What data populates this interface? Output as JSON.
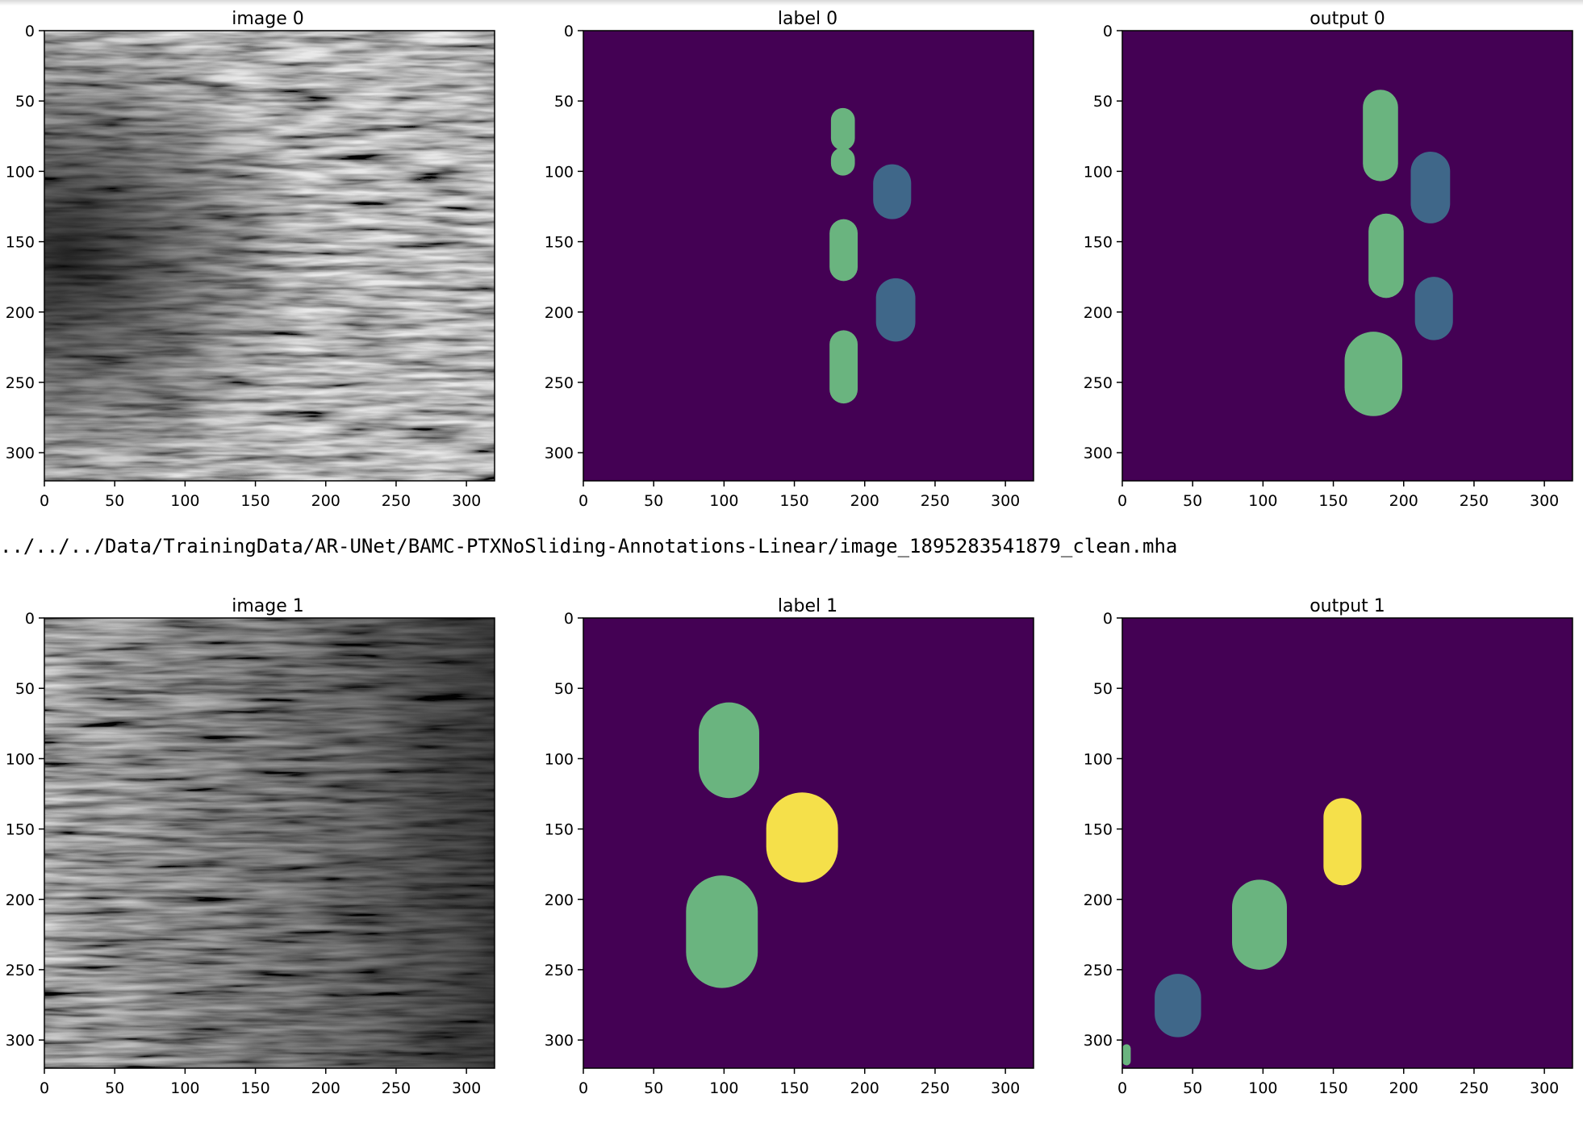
{
  "colors": {
    "background": "#440154",
    "green_class": "#6ab47f",
    "blue_class": "#3f6789",
    "yellow_class": "#f5e04a",
    "axis": "#000000"
  },
  "output_path": "../../../Data/TrainingData/AR-UNet/BAMC-PTXNoSliding-Annotations-Linear/image_1895283541879_clean.mha",
  "chart_data": [
    {
      "type": "heatmap",
      "title": "image 0",
      "xlim": [
        0,
        320
      ],
      "ylim": [
        320,
        0
      ],
      "x_ticks": [
        0,
        50,
        100,
        150,
        200,
        250,
        300
      ],
      "y_ticks": [
        0,
        50,
        100,
        150,
        200,
        250,
        300
      ],
      "content": "grayscale ultrasound image"
    },
    {
      "type": "heatmap",
      "title": "label 0",
      "xlim": [
        0,
        320
      ],
      "ylim": [
        320,
        0
      ],
      "x_ticks": [
        0,
        50,
        100,
        150,
        200,
        250,
        300
      ],
      "y_ticks": [
        0,
        50,
        100,
        150,
        200,
        250,
        300
      ],
      "regions": [
        {
          "class": "green",
          "x": [
            176,
            193
          ],
          "y": [
            55,
            85
          ]
        },
        {
          "class": "green",
          "x": [
            176,
            193
          ],
          "y": [
            83,
            103
          ]
        },
        {
          "class": "green",
          "x": [
            175,
            195
          ],
          "y": [
            134,
            178
          ]
        },
        {
          "class": "green",
          "x": [
            175,
            195
          ],
          "y": [
            213,
            265
          ]
        },
        {
          "class": "blue",
          "x": [
            206,
            233
          ],
          "y": [
            95,
            134
          ]
        },
        {
          "class": "blue",
          "x": [
            208,
            236
          ],
          "y": [
            176,
            221
          ]
        }
      ]
    },
    {
      "type": "heatmap",
      "title": "output 0",
      "xlim": [
        0,
        320
      ],
      "ylim": [
        320,
        0
      ],
      "x_ticks": [
        0,
        50,
        100,
        150,
        200,
        250,
        300
      ],
      "y_ticks": [
        0,
        50,
        100,
        150,
        200,
        250,
        300
      ],
      "regions": [
        {
          "class": "green",
          "x": [
            171,
            196
          ],
          "y": [
            42,
            107
          ]
        },
        {
          "class": "green",
          "x": [
            175,
            200
          ],
          "y": [
            130,
            190
          ]
        },
        {
          "class": "green",
          "x": [
            158,
            199
          ],
          "y": [
            214,
            274
          ]
        },
        {
          "class": "blue",
          "x": [
            205,
            233
          ],
          "y": [
            86,
            137
          ]
        },
        {
          "class": "blue",
          "x": [
            208,
            235
          ],
          "y": [
            175,
            220
          ]
        }
      ]
    },
    {
      "type": "heatmap",
      "title": "image 1",
      "xlim": [
        0,
        320
      ],
      "ylim": [
        320,
        0
      ],
      "x_ticks": [
        0,
        50,
        100,
        150,
        200,
        250,
        300
      ],
      "y_ticks": [
        0,
        50,
        100,
        150,
        200,
        250,
        300
      ],
      "content": "grayscale ultrasound image"
    },
    {
      "type": "heatmap",
      "title": "label 1",
      "xlim": [
        0,
        320
      ],
      "ylim": [
        320,
        0
      ],
      "x_ticks": [
        0,
        50,
        100,
        150,
        200,
        250,
        300
      ],
      "y_ticks": [
        0,
        50,
        100,
        150,
        200,
        250,
        300
      ],
      "regions": [
        {
          "class": "green",
          "x": [
            82,
            125
          ],
          "y": [
            60,
            128
          ]
        },
        {
          "class": "green",
          "x": [
            73,
            124
          ],
          "y": [
            183,
            263
          ]
        },
        {
          "class": "yellow",
          "x": [
            130,
            181
          ],
          "y": [
            124,
            188
          ]
        }
      ]
    },
    {
      "type": "heatmap",
      "title": "output 1",
      "xlim": [
        0,
        320
      ],
      "ylim": [
        320,
        0
      ],
      "x_ticks": [
        0,
        50,
        100,
        150,
        200,
        250,
        300
      ],
      "y_ticks": [
        0,
        50,
        100,
        150,
        200,
        250,
        300
      ],
      "regions": [
        {
          "class": "green",
          "x": [
            78,
            117
          ],
          "y": [
            186,
            250
          ]
        },
        {
          "class": "green",
          "x": [
            0,
            6
          ],
          "y": [
            303,
            318
          ]
        },
        {
          "class": "blue",
          "x": [
            23,
            56
          ],
          "y": [
            253,
            298
          ]
        },
        {
          "class": "yellow",
          "x": [
            143,
            170
          ],
          "y": [
            128,
            190
          ]
        }
      ]
    }
  ]
}
